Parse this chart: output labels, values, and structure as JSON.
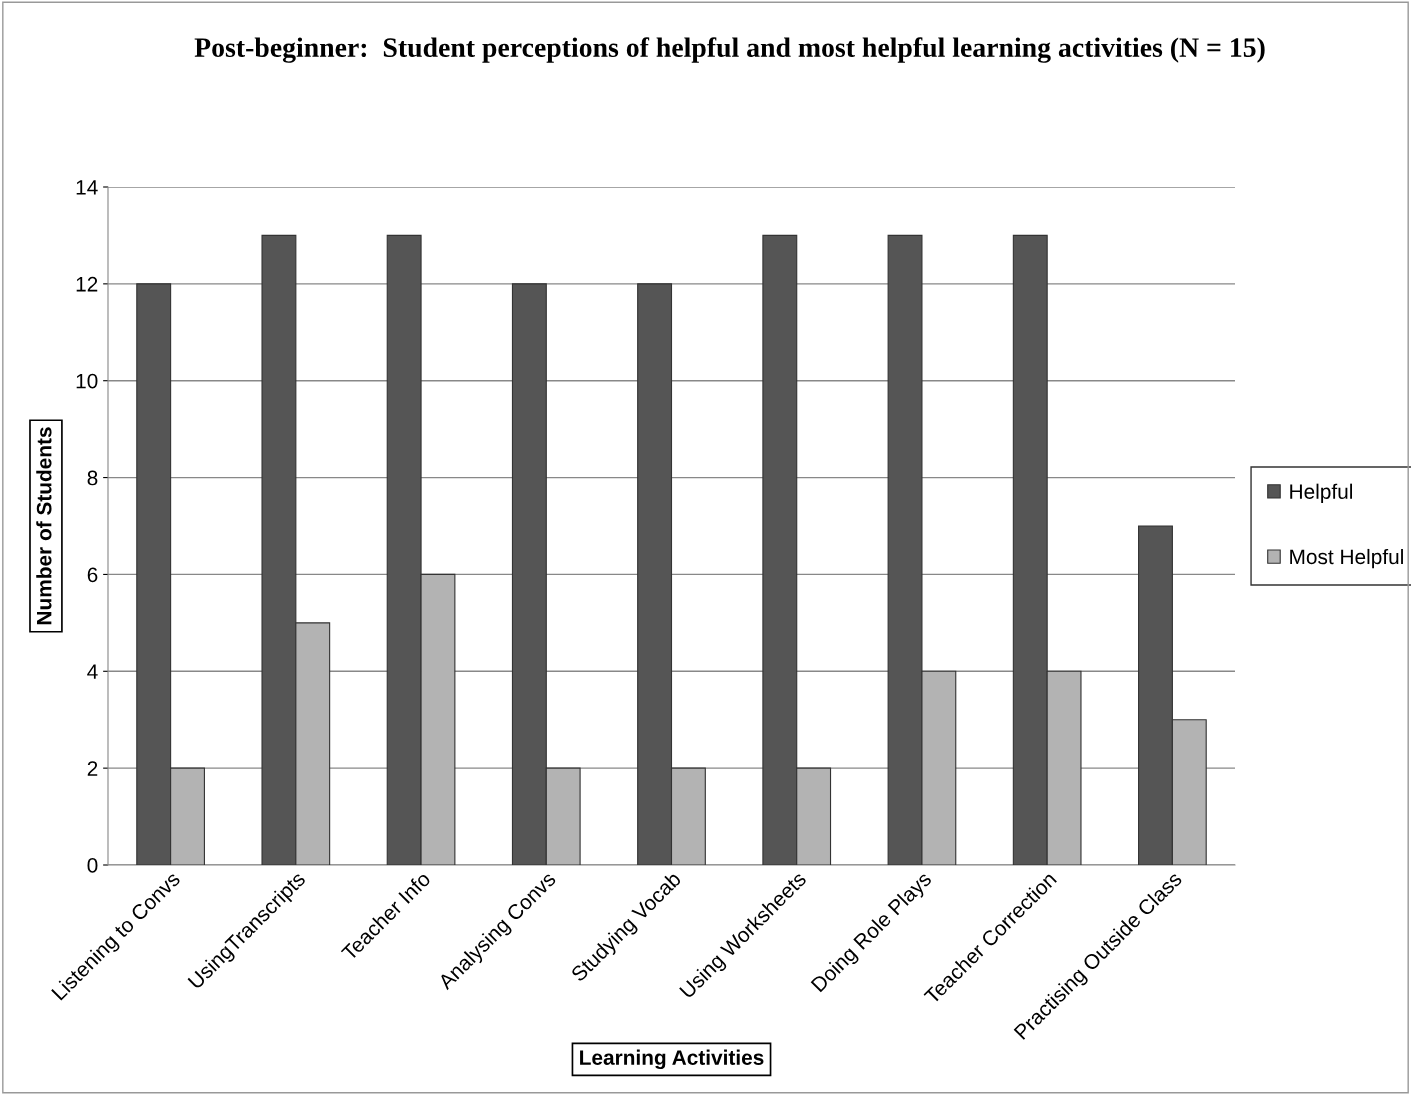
{
  "chart_data": {
    "type": "bar",
    "title": "Post-beginner:  Student perceptions of helpful and most helpful learning activities (N = 15)",
    "xlabel": "Learning Activities",
    "ylabel": "Number of Students",
    "categories": [
      "Listening to Convs",
      "UsingTranscripts",
      "Teacher Info",
      "Analysing Convs",
      "Studying Vocab",
      "Using Worksheets",
      "Doing Role Plays",
      "Teacher Correction",
      "Practising Outside Class"
    ],
    "series": [
      {
        "name": "Helpful",
        "color": "#555555",
        "values": [
          12,
          13,
          13,
          12,
          12,
          13,
          13,
          13,
          7
        ]
      },
      {
        "name": "Most Helpful",
        "color": "#b3b3b3",
        "values": [
          2,
          5,
          6,
          2,
          2,
          2,
          4,
          4,
          3
        ]
      }
    ],
    "ylim": [
      0,
      14
    ],
    "yticks": [
      0,
      2,
      4,
      6,
      8,
      10,
      12,
      14
    ],
    "grid": "y",
    "legend": "right"
  }
}
